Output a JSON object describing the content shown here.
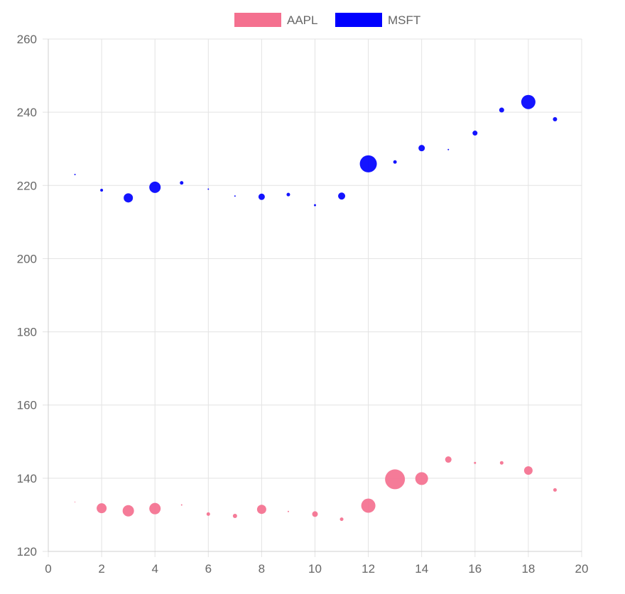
{
  "chart_data": {
    "type": "scatter",
    "subtype": "bubble",
    "title": "",
    "xlabel": "",
    "ylabel": "",
    "xlim": [
      0,
      20
    ],
    "ylim": [
      120,
      260
    ],
    "x_ticks": [
      0,
      2,
      4,
      6,
      8,
      10,
      12,
      14,
      16,
      18,
      20
    ],
    "y_ticks": [
      120,
      140,
      160,
      180,
      200,
      220,
      240,
      260
    ],
    "grid": true,
    "legend_position": "top",
    "series": [
      {
        "name": "AAPL",
        "color": "#f4708f",
        "points": [
          {
            "x": 1,
            "y": 133.5,
            "r": 0.5
          },
          {
            "x": 2,
            "y": 131.8,
            "r": 7
          },
          {
            "x": 3,
            "y": 131.1,
            "r": 8
          },
          {
            "x": 4,
            "y": 131.7,
            "r": 8
          },
          {
            "x": 5,
            "y": 132.7,
            "r": 1
          },
          {
            "x": 6,
            "y": 130.2,
            "r": 2.5
          },
          {
            "x": 7,
            "y": 129.7,
            "r": 3
          },
          {
            "x": 8,
            "y": 131.5,
            "r": 6.5
          },
          {
            "x": 9,
            "y": 130.9,
            "r": 1
          },
          {
            "x": 10,
            "y": 130.2,
            "r": 4
          },
          {
            "x": 11,
            "y": 128.8,
            "r": 2.5
          },
          {
            "x": 12,
            "y": 132.5,
            "r": 10
          },
          {
            "x": 13,
            "y": 139.7,
            "r": 14
          },
          {
            "x": 14,
            "y": 139.9,
            "r": 9
          },
          {
            "x": 15,
            "y": 145.1,
            "r": 4.5
          },
          {
            "x": 16,
            "y": 144.2,
            "r": 1.5
          },
          {
            "x": 17,
            "y": 144.2,
            "r": 2.5
          },
          {
            "x": 18,
            "y": 142.1,
            "r": 6
          },
          {
            "x": 19,
            "y": 136.8,
            "r": 2.5
          }
        ]
      },
      {
        "name": "MSFT",
        "color": "#0000ff",
        "points": [
          {
            "x": 1,
            "y": 223,
            "r": 1
          },
          {
            "x": 2,
            "y": 218.7,
            "r": 2
          },
          {
            "x": 3,
            "y": 216.6,
            "r": 6.5
          },
          {
            "x": 4,
            "y": 219.5,
            "r": 8
          },
          {
            "x": 5,
            "y": 220.7,
            "r": 2.5
          },
          {
            "x": 6,
            "y": 219,
            "r": 1
          },
          {
            "x": 7,
            "y": 217.1,
            "r": 1
          },
          {
            "x": 8,
            "y": 216.9,
            "r": 4.5
          },
          {
            "x": 9,
            "y": 217.5,
            "r": 2.5
          },
          {
            "x": 10,
            "y": 214.6,
            "r": 1.5
          },
          {
            "x": 11,
            "y": 217.1,
            "r": 5
          },
          {
            "x": 12,
            "y": 225.9,
            "r": 12
          },
          {
            "x": 13,
            "y": 226.4,
            "r": 2.5
          },
          {
            "x": 14,
            "y": 230.2,
            "r": 4.5
          },
          {
            "x": 15,
            "y": 229.8,
            "r": 1
          },
          {
            "x": 16,
            "y": 234.3,
            "r": 3.5
          },
          {
            "x": 17,
            "y": 240.6,
            "r": 3.5
          },
          {
            "x": 18,
            "y": 242.8,
            "r": 10
          },
          {
            "x": 19,
            "y": 238.1,
            "r": 3
          }
        ]
      }
    ]
  }
}
